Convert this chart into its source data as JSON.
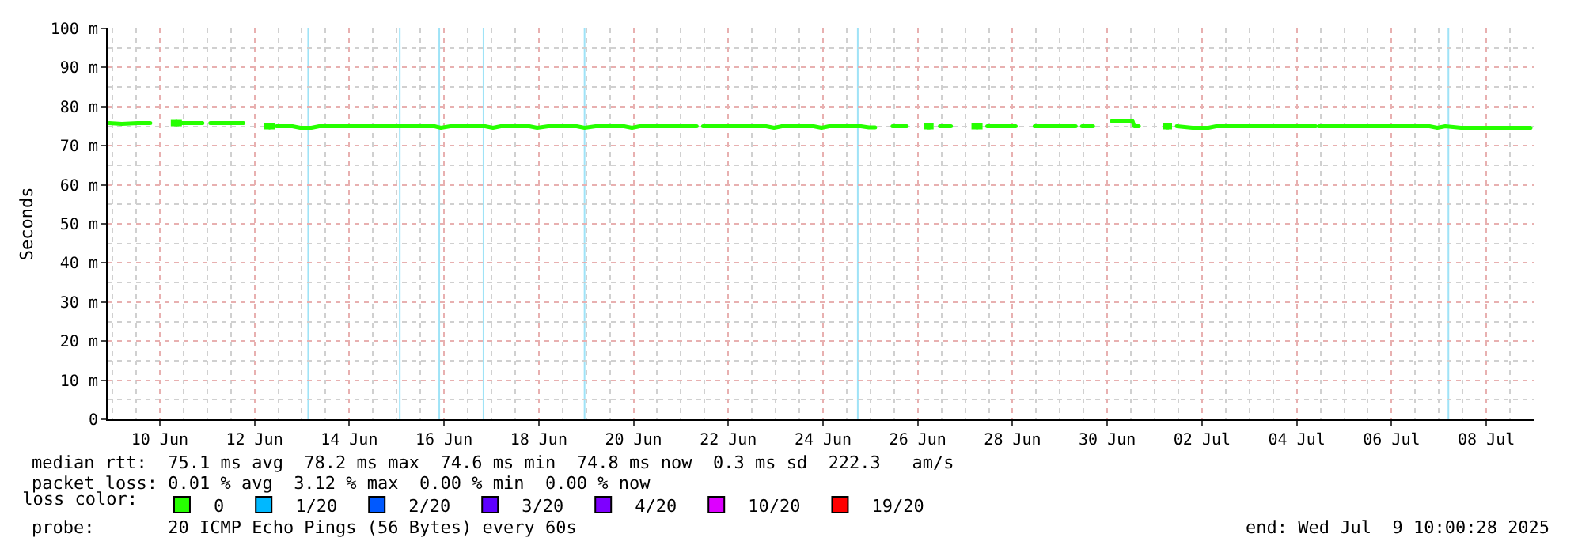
{
  "chart_data": {
    "type": "line",
    "ylabel": "Seconds",
    "x": [
      "2025-06-08T22:24",
      "2025-06-09T04:48",
      "2025-06-09T12:48",
      "2025-06-09T19:12",
      "2025-06-10T00:48",
      "2025-06-10T11:12",
      "2025-06-10T21:36",
      "2025-06-10T23:12",
      "2025-06-11T01:36",
      "2025-06-11T18:24",
      "2025-06-12T00:48",
      "2025-06-12T11:12",
      "2025-06-12T19:12",
      "2025-06-12T23:12",
      "2025-06-13T04:48",
      "2025-06-13T08:48",
      "2025-06-15T19:12",
      "2025-06-15T22:24",
      "2025-06-16T03:12",
      "2025-06-16T20:48",
      "2025-06-17T00:48",
      "2025-06-17T04:48",
      "2025-06-17T19:12",
      "2025-06-17T23:12",
      "2025-06-18T04:48",
      "2025-06-18T19:12",
      "2025-06-18T23:12",
      "2025-06-19T04:48",
      "2025-06-19T19:12",
      "2025-06-19T23:12",
      "2025-06-20T03:12",
      "2025-06-21T08:00",
      "2025-06-21T09:36",
      "2025-06-21T11:12",
      "2025-06-22T19:12",
      "2025-06-22T23:12",
      "2025-06-23T03:12",
      "2025-06-23T19:12",
      "2025-06-23T23:12",
      "2025-06-24T03:12",
      "2025-06-24T19:12",
      "2025-06-24T23:12",
      "2025-06-25T02:24",
      "2025-06-25T06:24",
      "2025-06-25T11:12",
      "2025-06-25T18:24",
      "2025-06-25T23:12",
      "2025-06-26T11:12",
      "2025-06-26T16:48",
      "2025-06-26T22:24",
      "2025-06-27T11:12",
      "2025-06-28T01:36",
      "2025-06-28T06:24",
      "2025-06-28T11:12",
      "2025-06-29T08:00",
      "2025-06-29T09:36",
      "2025-06-29T11:12",
      "2025-06-29T16:48",
      "2025-06-29T21:36",
      "2025-06-30T02:24",
      "2025-06-30T12:48",
      "2025-06-30T13:36",
      "2025-06-30T16:00",
      "2025-06-30T22:24",
      "2025-07-01T11:12",
      "2025-07-01T19:12",
      "2025-07-02T03:12",
      "2025-07-02T07:12",
      "2025-07-04T09:36",
      "2025-07-04T10:24",
      "2025-07-04T11:12",
      "2025-07-06T19:12",
      "2025-07-06T23:12",
      "2025-07-07T03:12",
      "2025-07-07T11:12",
      "2025-07-08T03:12",
      "2025-07-08T19:12",
      "2025-07-08T22:24"
    ],
    "series": [
      {
        "name": "0",
        "color": "#26ff00",
        "values": [
          75.8,
          75.6,
          75.8,
          75.8,
          null,
          75.8,
          75.8,
          null,
          75.8,
          75.8,
          null,
          75.0,
          75.0,
          74.6,
          74.6,
          75.0,
          75.0,
          74.6,
          75.0,
          75.0,
          74.6,
          75.0,
          75.0,
          74.6,
          75.0,
          75.0,
          74.6,
          75.0,
          75.0,
          74.6,
          75.0,
          75.0,
          null,
          75.0,
          75.0,
          74.6,
          75.0,
          75.0,
          74.6,
          75.0,
          75.0,
          74.7,
          74.7,
          null,
          75.0,
          75.0,
          null,
          75.0,
          75.0,
          null,
          75.0,
          75.0,
          null,
          75.0,
          75.0,
          null,
          75.0,
          75.0,
          null,
          76.3,
          76.3,
          75.0,
          75.0,
          null,
          75.0,
          74.6,
          74.6,
          75.0,
          75.0,
          null,
          75.0,
          75.0,
          74.6,
          75.0,
          74.6,
          74.6,
          74.6,
          74.6
        ]
      },
      {
        "type": "scatter",
        "marker": "square",
        "color": "#26ff00",
        "x": [
          "2025-06-10T07:12",
          "2025-06-10T09:36",
          "2025-06-12T06:24",
          "2025-06-12T08:48",
          "2025-06-26T04:48",
          "2025-06-26T06:24",
          "2025-06-27T04:48",
          "2025-06-27T07:12",
          "2025-07-01T05:36",
          "2025-07-01T07:12"
        ],
        "values": [
          75.8,
          75.8,
          75.0,
          75.0,
          75.0,
          75.0,
          75.0,
          75.0,
          75.0,
          75.0
        ]
      },
      {
        "name": "1/20",
        "color": "#00b8ff",
        "values": [
          null,
          null,
          null,
          null,
          null,
          null,
          null,
          null,
          null,
          null,
          null,
          null,
          null,
          null,
          null,
          null,
          null,
          null,
          null,
          null,
          null,
          null,
          null,
          null,
          null,
          null,
          null,
          null,
          null,
          null,
          null,
          null,
          null,
          null,
          null,
          null,
          null,
          null,
          null,
          null,
          null,
          null,
          null,
          null,
          null,
          null,
          null,
          null,
          null,
          null,
          null,
          null,
          null,
          null,
          null,
          null,
          null,
          null,
          null,
          null,
          null,
          null,
          null,
          null,
          null,
          null,
          null,
          null,
          null,
          null,
          null,
          null,
          null,
          null,
          null,
          null,
          null,
          null
        ]
      },
      {
        "name": "2/20",
        "color": "#0059ff",
        "values": [
          null,
          null,
          null,
          null,
          null,
          null,
          null,
          null,
          null,
          null,
          null,
          null,
          null,
          null,
          null,
          null,
          null,
          null,
          null,
          null,
          null,
          null,
          null,
          null,
          null,
          null,
          null,
          null,
          null,
          null,
          null,
          null,
          null,
          null,
          null,
          null,
          null,
          null,
          null,
          null,
          null,
          null,
          null,
          null,
          null,
          null,
          null,
          null,
          null,
          null,
          null,
          null,
          null,
          null,
          null,
          null,
          null,
          null,
          null,
          null,
          null,
          null,
          null,
          null,
          null,
          null,
          null,
          null,
          null,
          null,
          null,
          null,
          null,
          null,
          null,
          null,
          null,
          null
        ]
      },
      {
        "name": "3/20",
        "color": "#5e00ff",
        "values": [
          null,
          null,
          null,
          null,
          null,
          null,
          null,
          null,
          null,
          null,
          null,
          null,
          null,
          null,
          null,
          null,
          null,
          null,
          null,
          null,
          null,
          null,
          null,
          null,
          null,
          null,
          null,
          null,
          null,
          null,
          null,
          null,
          null,
          null,
          null,
          null,
          null,
          null,
          null,
          null,
          null,
          null,
          null,
          null,
          null,
          null,
          null,
          null,
          null,
          null,
          null,
          null,
          null,
          null,
          null,
          null,
          null,
          null,
          null,
          null,
          null,
          null,
          null,
          null,
          null,
          null,
          null,
          null,
          null,
          null,
          null,
          null,
          null,
          null,
          null,
          null,
          null,
          null
        ]
      },
      {
        "name": "4/20",
        "color": "#7e00ff",
        "values": [
          null,
          null,
          null,
          null,
          null,
          null,
          null,
          null,
          null,
          null,
          null,
          null,
          null,
          null,
          null,
          null,
          null,
          null,
          null,
          null,
          null,
          null,
          null,
          null,
          null,
          null,
          null,
          null,
          null,
          null,
          null,
          null,
          null,
          null,
          null,
          null,
          null,
          null,
          null,
          null,
          null,
          null,
          null,
          null,
          null,
          null,
          null,
          null,
          null,
          null,
          null,
          null,
          null,
          null,
          null,
          null,
          null,
          null,
          null,
          null,
          null,
          null,
          null,
          null,
          null,
          null,
          null,
          null,
          null,
          null,
          null,
          null,
          null,
          null,
          null,
          null,
          null,
          null
        ]
      },
      {
        "name": "10/20",
        "color": "#dd00ff",
        "values": [
          null,
          null,
          null,
          null,
          null,
          null,
          null,
          null,
          null,
          null,
          null,
          null,
          null,
          null,
          null,
          null,
          null,
          null,
          null,
          null,
          null,
          null,
          null,
          null,
          null,
          null,
          null,
          null,
          null,
          null,
          null,
          null,
          null,
          null,
          null,
          null,
          null,
          null,
          null,
          null,
          null,
          null,
          null,
          null,
          null,
          null,
          null,
          null,
          null,
          null,
          null,
          null,
          null,
          null,
          null,
          null,
          null,
          null,
          null,
          null,
          null,
          null,
          null,
          null,
          null,
          null,
          null,
          null,
          null,
          null,
          null,
          null,
          null,
          null,
          null,
          null,
          null,
          null
        ]
      },
      {
        "name": "19/20",
        "color": "#ff0000",
        "values": [
          null,
          null,
          null,
          null,
          null,
          null,
          null,
          null,
          null,
          null,
          null,
          null,
          null,
          null,
          null,
          null,
          null,
          null,
          null,
          null,
          null,
          null,
          null,
          null,
          null,
          null,
          null,
          null,
          null,
          null,
          null,
          null,
          null,
          null,
          null,
          null,
          null,
          null,
          null,
          null,
          null,
          null,
          null,
          null,
          null,
          null,
          null,
          null,
          null,
          null,
          null,
          null,
          null,
          null,
          null,
          null,
          null,
          null,
          null,
          null,
          null,
          null,
          null,
          null,
          null,
          null,
          null,
          null,
          null,
          null,
          null,
          null,
          null,
          null,
          null,
          null,
          null,
          null
        ]
      }
    ],
    "ref_lines": [
      {
        "axis": "x",
        "value": "2025-06-13T03:12",
        "color": "#9fe3f7"
      },
      {
        "axis": "x",
        "value": "2025-06-15T01:36",
        "color": "#9fe3f7"
      },
      {
        "axis": "x",
        "value": "2025-06-15T21:36",
        "color": "#9fe3f7"
      },
      {
        "axis": "x",
        "value": "2025-06-16T20:00",
        "color": "#9fe3f7"
      },
      {
        "axis": "x",
        "value": "2025-06-18T23:12",
        "color": "#9fe3f7"
      },
      {
        "axis": "x",
        "value": "2025-06-24T17:36",
        "color": "#9fe3f7"
      },
      {
        "axis": "x",
        "value": "2025-07-07T04:48",
        "color": "#9fe3f7"
      }
    ],
    "xlim": [
      "2025-06-08T21:36",
      "2025-07-09T00:00"
    ],
    "xticks": [
      {
        "value": "2025-06-10",
        "label": "10 Jun"
      },
      {
        "value": "2025-06-12",
        "label": "12 Jun"
      },
      {
        "value": "2025-06-14",
        "label": "14 Jun"
      },
      {
        "value": "2025-06-16",
        "label": "16 Jun"
      },
      {
        "value": "2025-06-18",
        "label": "18 Jun"
      },
      {
        "value": "2025-06-20",
        "label": "20 Jun"
      },
      {
        "value": "2025-06-22",
        "label": "22 Jun"
      },
      {
        "value": "2025-06-24",
        "label": "24 Jun"
      },
      {
        "value": "2025-06-26",
        "label": "26 Jun"
      },
      {
        "value": "2025-06-28",
        "label": "28 Jun"
      },
      {
        "value": "2025-06-30",
        "label": "30 Jun"
      },
      {
        "value": "2025-07-02",
        "label": "02 Jul"
      },
      {
        "value": "2025-07-04",
        "label": "04 Jul"
      },
      {
        "value": "2025-07-06",
        "label": "06 Jul"
      },
      {
        "value": "2025-07-08",
        "label": "08 Jul"
      }
    ],
    "ylim": [
      0,
      100
    ],
    "yticks": [
      0,
      {
        "value": 10,
        "label": "10 m"
      },
      {
        "value": 20,
        "label": "20 m"
      },
      {
        "value": 30,
        "label": "30 m"
      },
      {
        "value": 40,
        "label": "40 m"
      },
      {
        "value": 50,
        "label": "50 m"
      },
      {
        "value": 60,
        "label": "60 m"
      },
      {
        "value": 70,
        "label": "70 m"
      },
      {
        "value": 80,
        "label": "80 m"
      },
      {
        "value": 90,
        "label": "90 m"
      },
      {
        "value": 100,
        "label": "100 m"
      }
    ],
    "grid": true,
    "legend": "bottom",
    "legend_title": "loss color:",
    "marker": "none",
    "line_style": "solid",
    "annotations": [
      "median rtt:  75.1 ms avg  78.2 ms max  74.6 ms min  74.8 ms now  0.3 ms sd  222.3   am/s",
      "packet loss: 0.01 % avg  3.12 % max  0.00 % min  0.00 % now",
      "probe:       20 ICMP Echo Pings (56 Bytes) every 60s",
      "end: Wed Jul  9 10:00:28 2025"
    ]
  }
}
